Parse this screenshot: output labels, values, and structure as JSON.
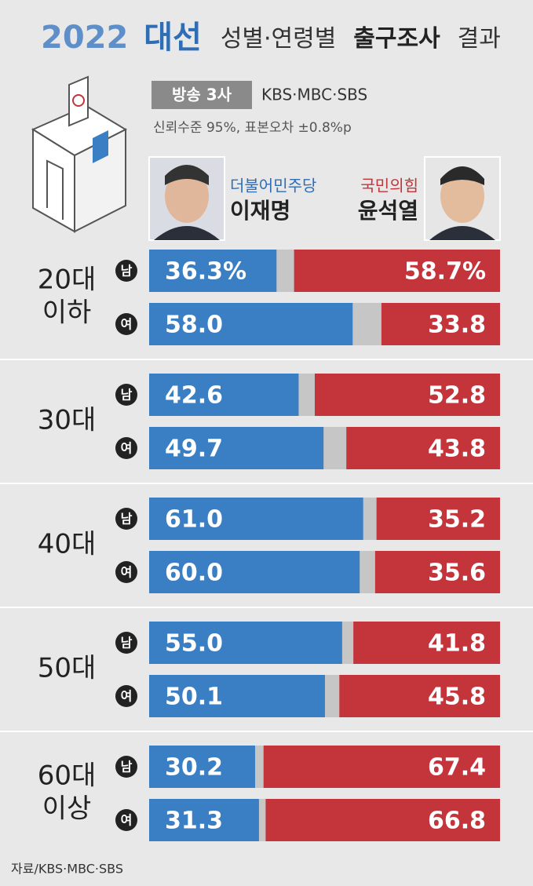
{
  "chart_data": {
    "type": "bar",
    "title_year": "2022",
    "title_election": "대선",
    "title_topic": "성별·연령별",
    "title_bold": "출구조사",
    "title_end": "결과",
    "badge": "방송 3사",
    "broadcasters": "KBS·MBC·SBS",
    "note": "신뢰수준 95%, 표본오차 ±0.8%p",
    "source": "자료/KBS·MBC·SBS",
    "xlim": [
      0,
      100
    ],
    "categories": [
      "남",
      "여",
      "남",
      "여",
      "남",
      "여",
      "남",
      "여",
      "남",
      "여"
    ],
    "groups": [
      {
        "label": [
          "20대",
          "이하"
        ]
      },
      {
        "label": [
          "30대"
        ]
      },
      {
        "label": [
          "40대"
        ]
      },
      {
        "label": [
          "50대"
        ]
      },
      {
        "label": [
          "60대",
          "이상"
        ]
      }
    ],
    "series": [
      {
        "name": "이재명",
        "party": "더불어민주당",
        "color": "#3a7ec4",
        "values": [
          36.3,
          58.0,
          42.6,
          49.7,
          61.0,
          60.0,
          55.0,
          50.1,
          30.2,
          31.3
        ],
        "value_labels": [
          "36.3%",
          "58.0",
          "42.6",
          "49.7",
          "61.0",
          "60.0",
          "55.0",
          "50.1",
          "30.2",
          "31.3"
        ]
      },
      {
        "name": "윤석열",
        "party": "국민의힘",
        "color": "#c4343b",
        "values": [
          58.7,
          33.8,
          52.8,
          43.8,
          35.2,
          35.6,
          41.8,
          45.8,
          67.4,
          66.8
        ],
        "value_labels": [
          "58.7%",
          "33.8",
          "52.8",
          "43.8",
          "35.2",
          "35.6",
          "41.8",
          "45.8",
          "67.4",
          "66.8"
        ]
      }
    ]
  }
}
